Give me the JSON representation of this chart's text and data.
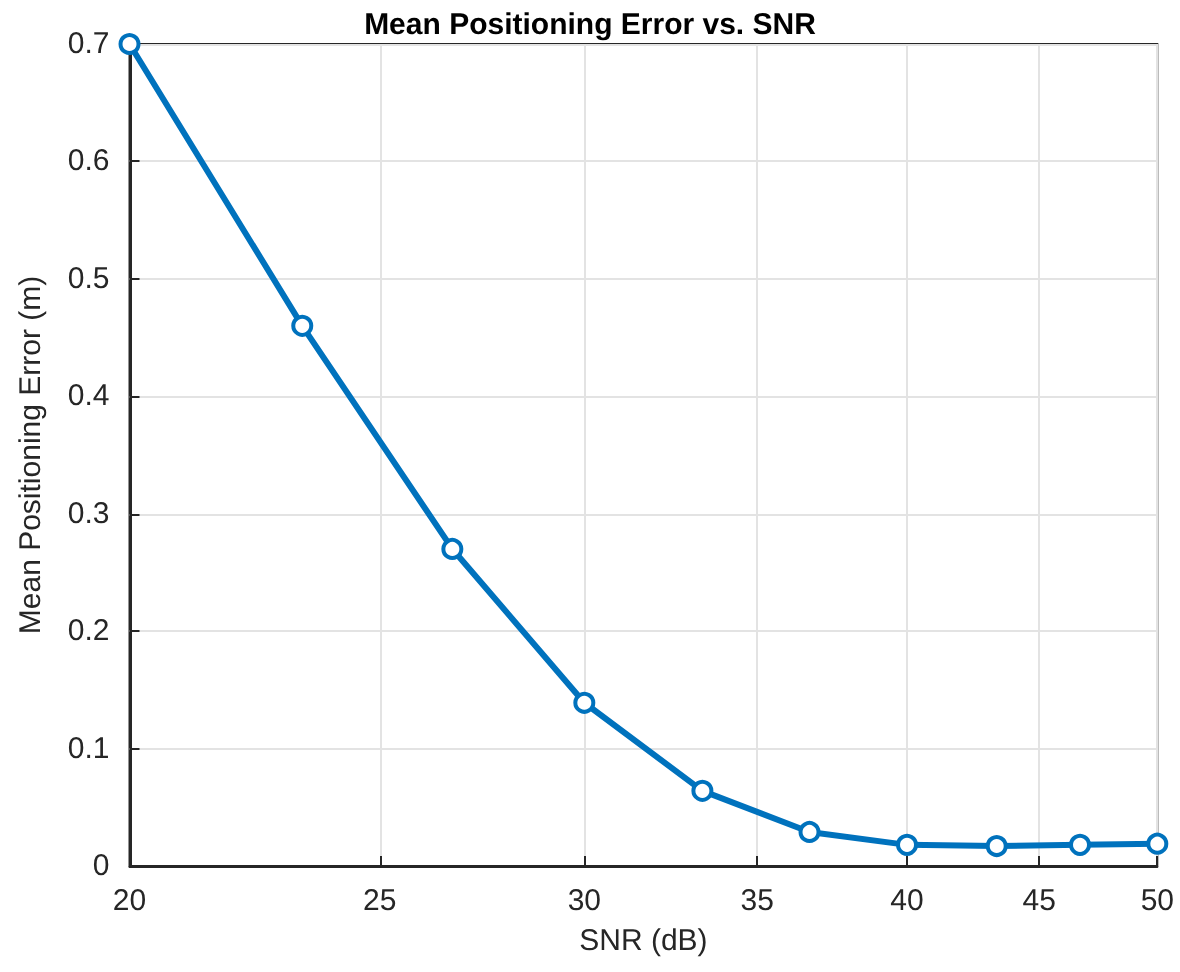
{
  "chart_data": {
    "type": "line",
    "title": "Mean Positioning Error vs. SNR",
    "xlabel": "SNR (dB)",
    "ylabel": "Mean Positioning Error (m)",
    "x": [
      20,
      23.33,
      26.67,
      30,
      33.33,
      36.67,
      40,
      43.33,
      46.67,
      50
    ],
    "series": [
      {
        "color": "#0072bd",
        "values": [
          0.7,
          0.46,
          0.27,
          0.139,
          0.064,
          0.029,
          0.018,
          0.017,
          0.018,
          0.019
        ]
      }
    ],
    "log": "x",
    "xlim": [
      20,
      50
    ],
    "xticks": [
      20,
      25,
      30,
      35,
      40,
      45,
      50
    ],
    "ylim": [
      0,
      0.7
    ],
    "yticks": [
      0,
      0.1,
      0.2,
      0.3,
      0.4,
      0.5,
      0.6,
      0.7
    ],
    "grid": true,
    "marker": "circle",
    "line_style": "solid"
  }
}
